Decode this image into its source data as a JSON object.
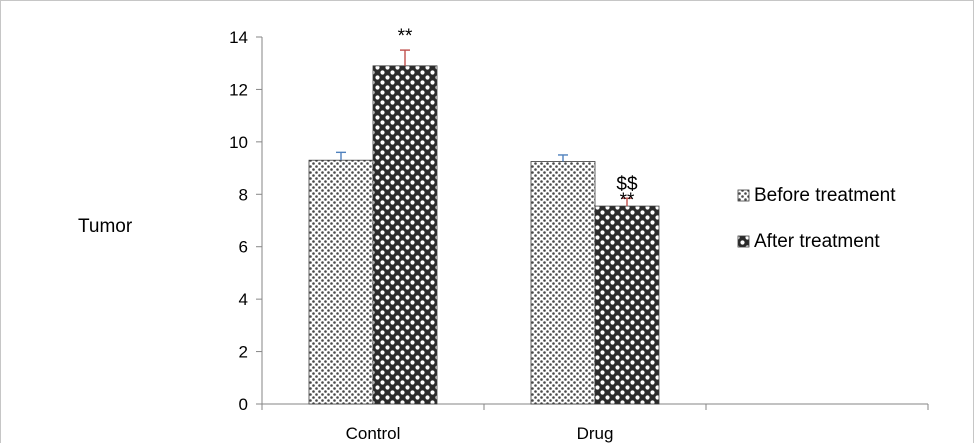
{
  "chart_data": {
    "type": "bar",
    "title": "",
    "xlabel": "",
    "ylabel": "Tumor",
    "ylim": [
      0,
      14
    ],
    "yticks": [
      0,
      2,
      4,
      6,
      8,
      10,
      12,
      14
    ],
    "categories": [
      "Control",
      "Drug"
    ],
    "series": [
      {
        "name": "Before treatment",
        "values": [
          9.3,
          9.25
        ],
        "errors": [
          0.3,
          0.25
        ],
        "error_color": "#4f81bd"
      },
      {
        "name": "After treatment",
        "values": [
          12.9,
          7.55
        ],
        "errors": [
          0.6,
          0.3
        ],
        "error_color": "#c0504d"
      }
    ],
    "annotations": [
      {
        "category": "Control",
        "series": "After treatment",
        "text": "**"
      },
      {
        "category": "Drug",
        "series": "After treatment",
        "text": "$$"
      },
      {
        "category": "Drug",
        "series": "After treatment",
        "text": "**"
      }
    ],
    "legend_position": "right",
    "grid": false
  }
}
